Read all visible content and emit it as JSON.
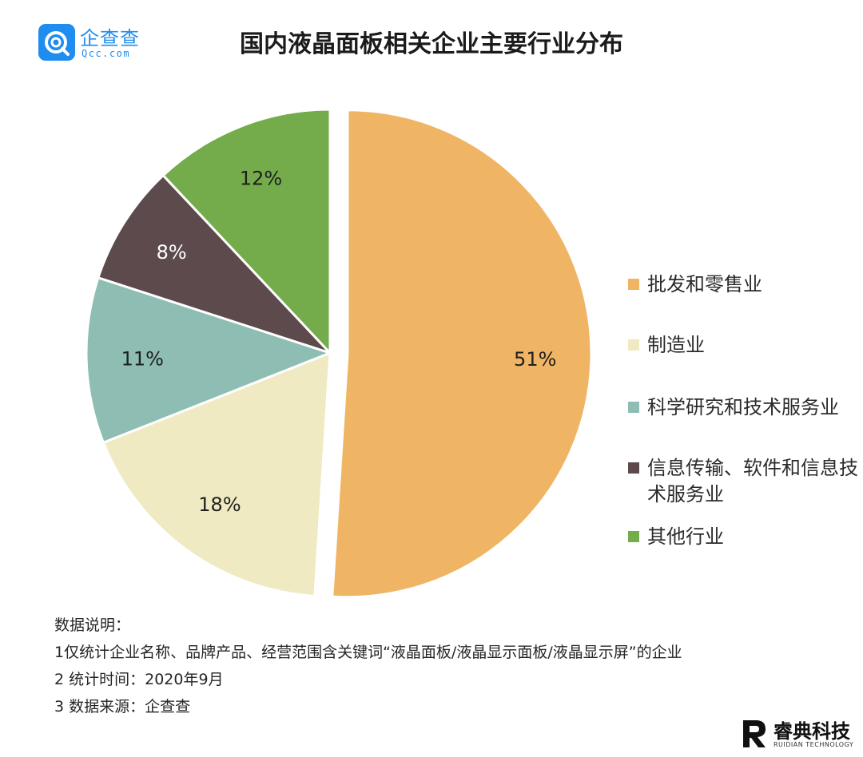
{
  "header": {
    "logo_cn": "企查查",
    "logo_en": "Qcc.com",
    "title": "国内液晶面板相关企业主要行业分布"
  },
  "chart_data": {
    "type": "pie",
    "title": "国内液晶面板相关企业主要行业分布",
    "slices": [
      {
        "label": "批发和零售业",
        "value": 51,
        "display": "51%",
        "color": "#efb464",
        "label_color": "#1f1f1f",
        "exploded": true
      },
      {
        "label": "制造业",
        "value": 18,
        "display": "18%",
        "color": "#efeac2",
        "label_color": "#1f1f1f",
        "exploded": false
      },
      {
        "label": "科学研究和技术服务业",
        "value": 11,
        "display": "11%",
        "color": "#8dbdb3",
        "label_color": "#1f1f1f",
        "exploded": false
      },
      {
        "label": "信息传输、软件和信息技术服务业",
        "value": 8,
        "display": "8%",
        "color": "#5c4a4d",
        "label_color": "#ffffff",
        "exploded": false
      },
      {
        "label": "其他行业",
        "value": 12,
        "display": "12%",
        "color": "#74ab4b",
        "label_color": "#1f1f1f",
        "exploded": false
      }
    ],
    "legend_position": "right"
  },
  "legend": [
    {
      "label": "批发和零售业",
      "color": "#efb464"
    },
    {
      "label": "制造业",
      "color": "#efeac2"
    },
    {
      "label": "科学研究和技术服务业",
      "color": "#8dbdb3"
    },
    {
      "label": "信息传输、软件和信息技术服务业",
      "color": "#5c4a4d"
    },
    {
      "label": "其他行业",
      "color": "#74ab4b"
    }
  ],
  "notes": {
    "heading": "数据说明：",
    "line1": "1仅统计企业名称、品牌产品、经营范围含关键词“液晶面板/液晶显示面板/液晶显示屏”的企业",
    "line2": "2 统计时间：2020年9月",
    "line3": "3 数据来源：企查查"
  },
  "footer": {
    "brand_cn": "睿典科技",
    "brand_en": "RUIDIAN TECHNOLOGY"
  }
}
